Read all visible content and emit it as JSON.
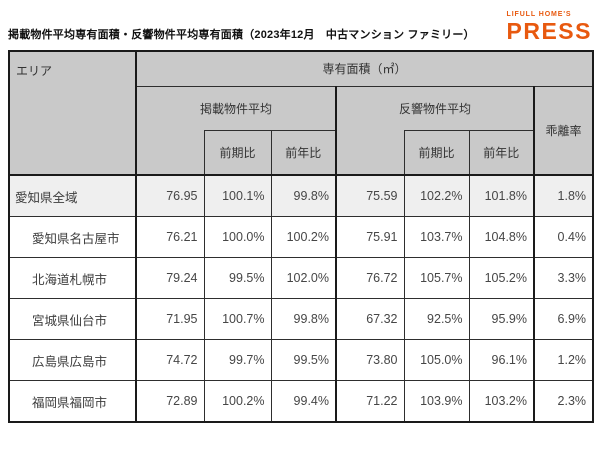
{
  "header": {
    "title": "掲載物件平均専有面積・反響物件平均専有面積（2023年12月　中古マンション ファミリー）",
    "logo_top": "LIFULL HOME'S",
    "logo_bottom": "PRESS",
    "logo_color": "#e8590f"
  },
  "table": {
    "area_header": "エリア",
    "group_header": "専有面積（㎡）",
    "listed_group": "掲載物件平均",
    "response_group": "反響物件平均",
    "deviation_header": "乖離率",
    "prev_period_label": "前期比",
    "prev_year_label": "前年比",
    "rows": [
      {
        "area": "愛知県全域",
        "indent": false,
        "highlight": true,
        "listed_avg": "76.95",
        "listed_prev_period": "100.1%",
        "listed_prev_year": "99.8%",
        "response_avg": "75.59",
        "response_prev_period": "102.2%",
        "response_prev_year": "101.8%",
        "deviation": "1.8%"
      },
      {
        "area": "愛知県名古屋市",
        "indent": true,
        "highlight": false,
        "listed_avg": "76.21",
        "listed_prev_period": "100.0%",
        "listed_prev_year": "100.2%",
        "response_avg": "75.91",
        "response_prev_period": "103.7%",
        "response_prev_year": "104.8%",
        "deviation": "0.4%"
      },
      {
        "area": "北海道札幌市",
        "indent": true,
        "highlight": false,
        "listed_avg": "79.24",
        "listed_prev_period": "99.5%",
        "listed_prev_year": "102.0%",
        "response_avg": "76.72",
        "response_prev_period": "105.7%",
        "response_prev_year": "105.2%",
        "deviation": "3.3%"
      },
      {
        "area": "宮城県仙台市",
        "indent": true,
        "highlight": false,
        "listed_avg": "71.95",
        "listed_prev_period": "100.7%",
        "listed_prev_year": "99.8%",
        "response_avg": "67.32",
        "response_prev_period": "92.5%",
        "response_prev_year": "95.9%",
        "deviation": "6.9%"
      },
      {
        "area": "広島県広島市",
        "indent": true,
        "highlight": false,
        "listed_avg": "74.72",
        "listed_prev_period": "99.7%",
        "listed_prev_year": "99.5%",
        "response_avg": "73.80",
        "response_prev_period": "105.0%",
        "response_prev_year": "96.1%",
        "deviation": "1.2%"
      },
      {
        "area": "福岡県福岡市",
        "indent": true,
        "highlight": false,
        "listed_avg": "72.89",
        "listed_prev_period": "100.2%",
        "listed_prev_year": "99.4%",
        "response_avg": "71.22",
        "response_prev_period": "103.9%",
        "response_prev_year": "103.2%",
        "deviation": "2.3%"
      }
    ]
  },
  "chart_data": {
    "type": "table",
    "title": "掲載物件平均専有面積・反響物件平均専有面積（2023年12月　中古マンション ファミリー）",
    "unit": "㎡",
    "columns": [
      "エリア",
      "掲載物件平均",
      "掲載物件平均 前期比",
      "掲載物件平均 前年比",
      "反響物件平均",
      "反響物件平均 前期比",
      "反響物件平均 前年比",
      "乖離率"
    ],
    "rows": [
      [
        "愛知県全域",
        76.95,
        "100.1%",
        "99.8%",
        75.59,
        "102.2%",
        "101.8%",
        "1.8%"
      ],
      [
        "愛知県名古屋市",
        76.21,
        "100.0%",
        "100.2%",
        75.91,
        "103.7%",
        "104.8%",
        "0.4%"
      ],
      [
        "北海道札幌市",
        79.24,
        "99.5%",
        "102.0%",
        76.72,
        "105.7%",
        "105.2%",
        "3.3%"
      ],
      [
        "宮城県仙台市",
        71.95,
        "100.7%",
        "99.8%",
        67.32,
        "92.5%",
        "95.9%",
        "6.9%"
      ],
      [
        "広島県広島市",
        74.72,
        "99.7%",
        "99.5%",
        "73.80",
        "105.0%",
        "96.1%",
        "1.2%"
      ],
      [
        "福岡県福岡市",
        72.89,
        "100.2%",
        "99.4%",
        71.22,
        "103.9%",
        "103.2%",
        "2.3%"
      ]
    ]
  }
}
